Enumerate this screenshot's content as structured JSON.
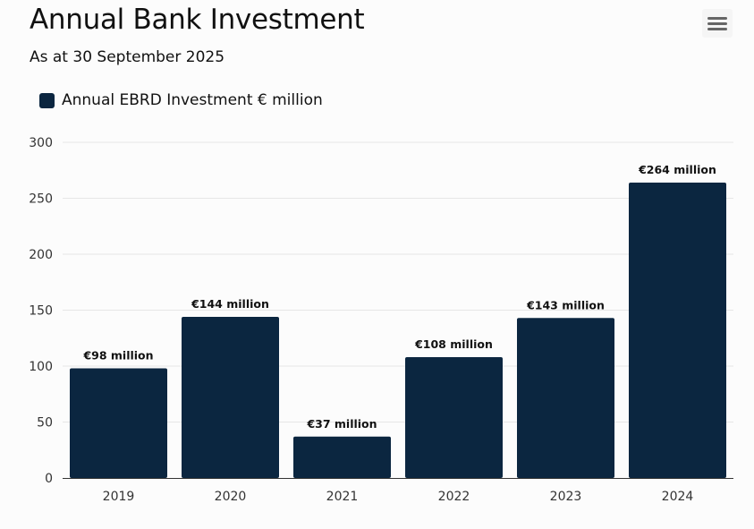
{
  "header": {
    "title": "Annual Bank Investment",
    "subtitle": "As at 30 September 2025",
    "menu_icon": "hamburger-menu-icon"
  },
  "colors": {
    "bar": "#0b2640",
    "grid": "#e6e6e6",
    "axis": "#333333"
  },
  "chart_data": {
    "type": "bar",
    "title": "Annual Bank Investment",
    "subtitle": "As at 30 September 2025",
    "categories": [
      "2019",
      "2020",
      "2021",
      "2022",
      "2023",
      "2024"
    ],
    "series": [
      {
        "name": "Annual EBRD Investment € million",
        "values": [
          98,
          144,
          37,
          108,
          143,
          264
        ],
        "data_labels": [
          "€98 million",
          "€144 million",
          "€37 million",
          "€108 million",
          "€143 million",
          "€264 million"
        ]
      }
    ],
    "ylim": [
      0,
      300
    ],
    "yticks": [
      0,
      50,
      100,
      150,
      200,
      250,
      300
    ],
    "grid": true,
    "legend_position": "top-left"
  }
}
